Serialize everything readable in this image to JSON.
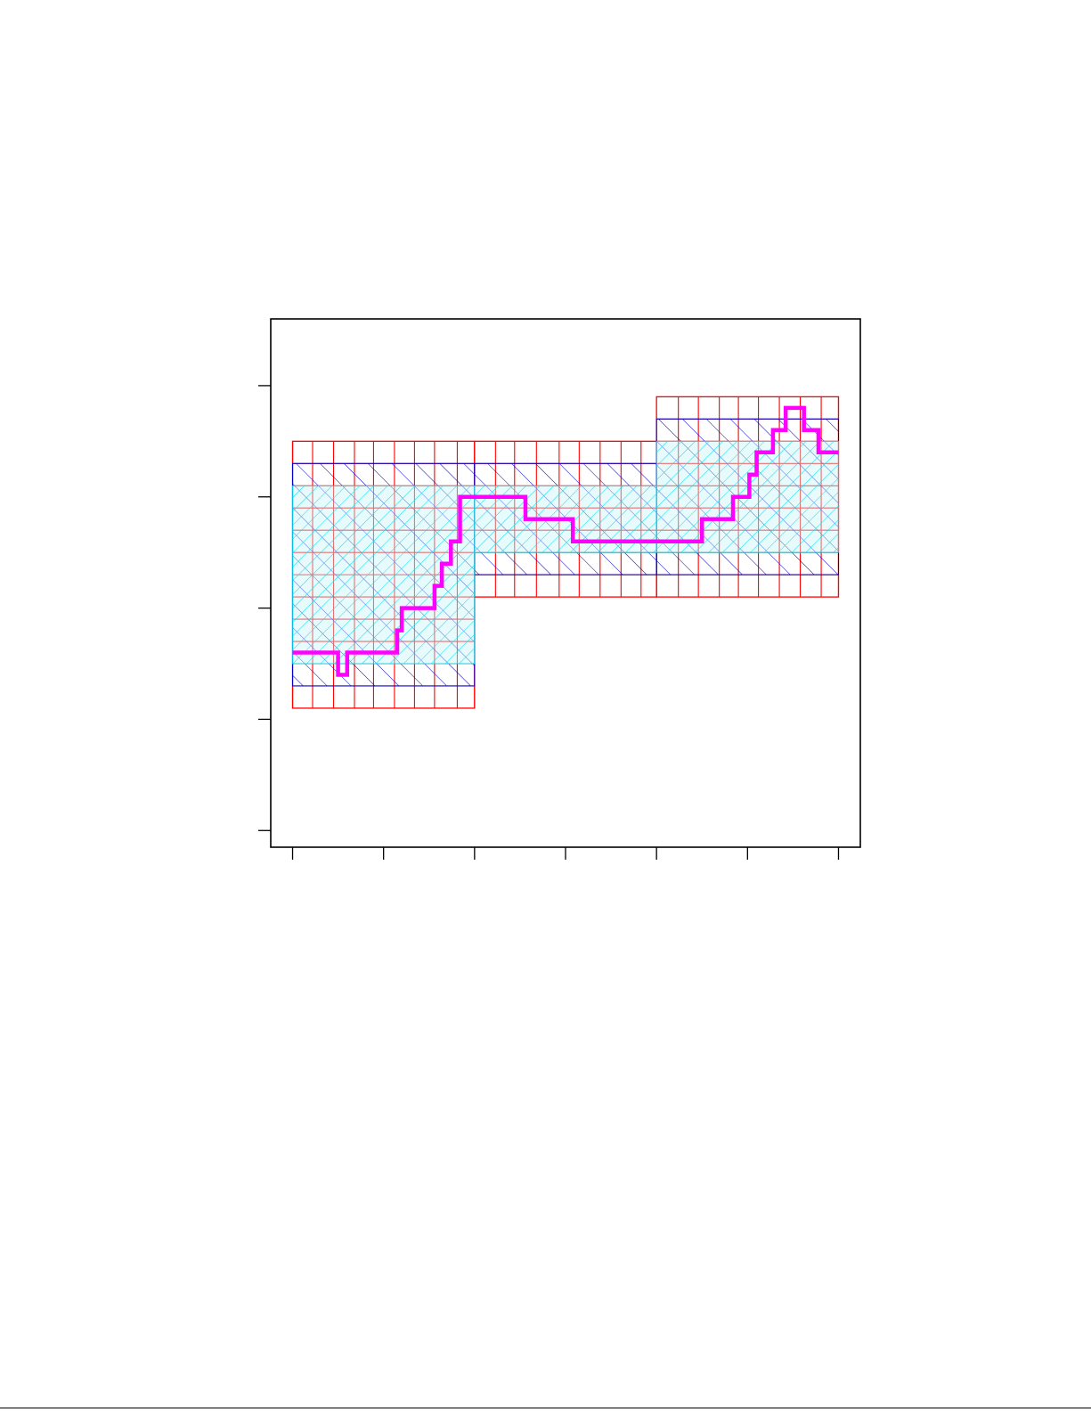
{
  "chart_data": {
    "type": "step",
    "title": "",
    "xlabel": "",
    "ylabel": "",
    "x_ticks": [
      0,
      5,
      10,
      15,
      20,
      25,
      30
    ],
    "y_ticks": [
      -2,
      -1,
      0,
      1,
      2
    ],
    "xlim": [
      -1.2,
      31.2
    ],
    "ylim": [
      -2.15,
      2.6
    ],
    "tick_labels_shown": false,
    "grid": false,
    "legend": "none",
    "colors": {
      "step_line": "#ff00ff",
      "inner_band_fill": "#c9f7fb",
      "inner_band_hatch": "#00e0ee",
      "middle_band_hatch": "#0000cc",
      "outer_band_grid": "#ff0000",
      "axes": "#000000"
    },
    "series": [
      {
        "role": "step_path",
        "x": [
          0,
          2.5,
          2.5,
          3,
          3,
          5.75,
          5.75,
          6,
          6,
          7.8,
          7.8,
          8.2,
          8.2,
          8.7,
          8.7,
          9.2,
          9.2,
          12.8,
          12.8,
          15.4,
          15.4,
          17.8,
          17.8,
          19.2,
          19.2,
          20,
          20,
          22.5,
          22.5,
          24.2,
          24.2,
          25.1,
          25.1,
          25.5,
          25.5,
          26.4,
          26.4,
          27.1,
          27.1,
          28.1,
          28.1,
          28.9,
          28.9,
          30
        ],
        "y": [
          -0.4,
          -0.4,
          -0.6,
          -0.6,
          -0.4,
          -0.4,
          -0.2,
          -0.2,
          0,
          0,
          0.2,
          0.2,
          0.4,
          0.4,
          0.6,
          0.6,
          1,
          1,
          0.8,
          0.8,
          0.6,
          0.6,
          0.6,
          0.6,
          0.6,
          0.6,
          0.6,
          0.6,
          0.8,
          0.8,
          1,
          1,
          1.2,
          1.2,
          1.4,
          1.4,
          1.6,
          1.6,
          1.8,
          1.8,
          1.6,
          1.6,
          1.4,
          1.4
        ]
      }
    ],
    "bands": [
      {
        "role": "outer_band",
        "segments": [
          {
            "x": [
              0,
              10
            ],
            "y": [
              -0.9,
              1.5
            ]
          },
          {
            "x": [
              10,
              20
            ],
            "y": [
              0.1,
              1.5
            ]
          },
          {
            "x": [
              20,
              30
            ],
            "y": [
              0.1,
              1.9
            ]
          }
        ],
        "column_edges": [
          0,
          1.1,
          2.25,
          3.4,
          4.45,
          5.6,
          6.7,
          7.8,
          9.05,
          10,
          11.15,
          12.2,
          13.4,
          14.65,
          15.75,
          16.9,
          18.05,
          19.15,
          20,
          21.2,
          22.3,
          23.45,
          24.5,
          25.6,
          26.75,
          27.9,
          29.05,
          30
        ]
      },
      {
        "role": "middle_band",
        "segments": [
          {
            "x": [
              0,
              10
            ],
            "y": [
              -0.7,
              1.3
            ]
          },
          {
            "x": [
              10,
              20
            ],
            "y": [
              0.3,
              1.3
            ]
          },
          {
            "x": [
              20,
              30
            ],
            "y": [
              0.3,
              1.7
            ]
          }
        ]
      },
      {
        "role": "inner_band",
        "segments": [
          {
            "x": [
              0,
              10
            ],
            "y": [
              -0.5,
              1.1
            ]
          },
          {
            "x": [
              10,
              20
            ],
            "y": [
              0.5,
              1.1
            ]
          },
          {
            "x": [
              20,
              30
            ],
            "y": [
              0.5,
              1.5
            ]
          }
        ]
      }
    ]
  }
}
